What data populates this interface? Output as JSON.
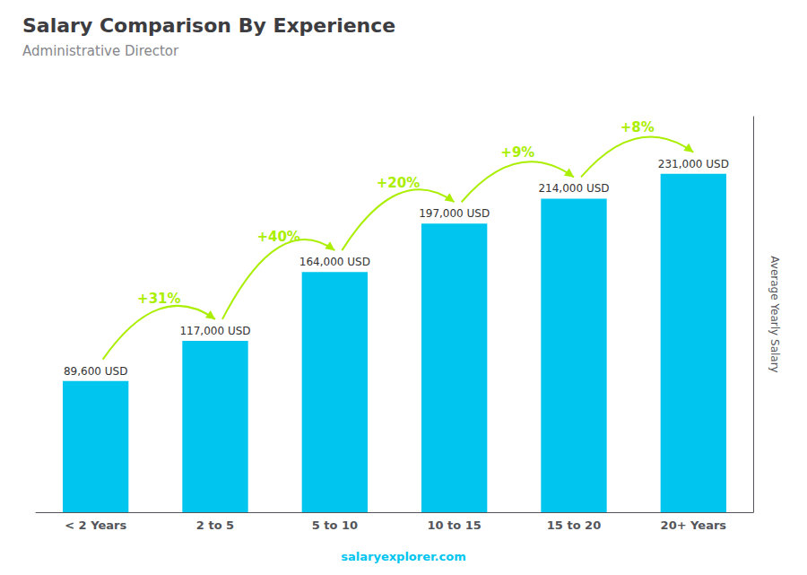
{
  "chart_data": {
    "type": "bar",
    "title": "Salary Comparison By Experience",
    "subtitle": "Administrative Director",
    "categories": [
      "< 2 Years",
      "2 to 5",
      "5 to 10",
      "10 to 15",
      "15 to 20",
      "20+ Years"
    ],
    "values": [
      89600,
      117000,
      164000,
      197000,
      214000,
      231000
    ],
    "value_labels": [
      "89,600 USD",
      "117,000 USD",
      "164,000 USD",
      "197,000 USD",
      "214,000 USD",
      "231,000 USD"
    ],
    "data_labels": true,
    "color": "#00C5EE",
    "ylabel": "Average Yearly Salary",
    "ylim": [
      0,
      270000
    ],
    "tick_labels": "x",
    "grid": false,
    "annotations": [
      {
        "text": "+31%",
        "from": "< 2 Years",
        "to": "2 to 5",
        "color": "#aaee00"
      },
      {
        "text": "+40%",
        "from": "2 to 5",
        "to": "5 to 10",
        "color": "#aaee00"
      },
      {
        "text": "+20%",
        "from": "5 to 10",
        "to": "10 to 15",
        "color": "#aaee00"
      },
      {
        "text": "+9%",
        "from": "10 to 15",
        "to": "15 to 20",
        "color": "#aaee00"
      },
      {
        "text": "+8%",
        "from": "15 to 20",
        "to": "20+ Years",
        "color": "#aaee00"
      }
    ],
    "footer": "salaryexplorer.com"
  }
}
